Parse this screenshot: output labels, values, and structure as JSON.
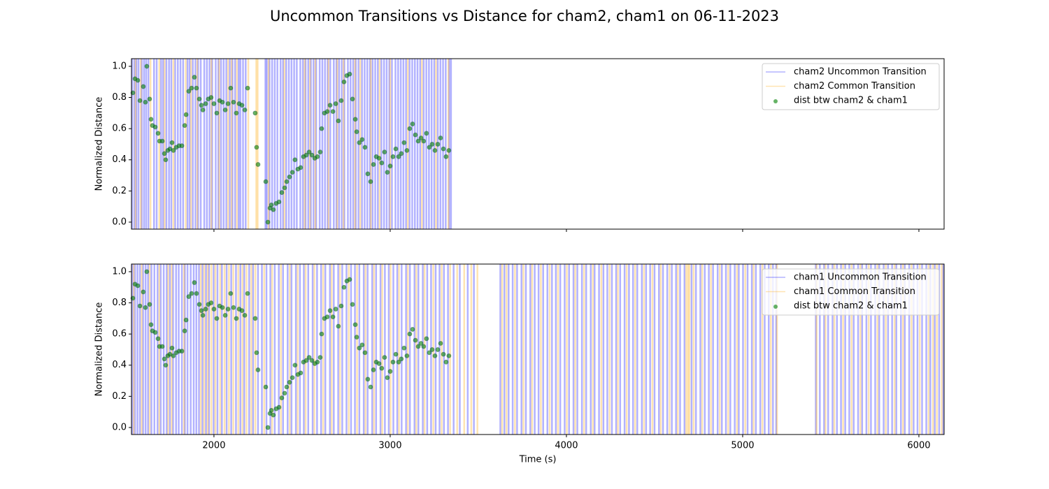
{
  "title": "Uncommon Transitions vs Distance for cham2, cham1 on 06-11-2023",
  "chart_data": [
    {
      "type": "scatter",
      "y_label": "Normalized Distance",
      "show_xtick_labels": false,
      "legend": "upper right",
      "xlim": [
        1532,
        6143
      ],
      "ylim": [
        -0.045,
        1.049
      ],
      "xticks": [
        2000,
        3000,
        4000,
        5000,
        6000
      ],
      "yticks": [
        {
          "value": 0,
          "label": "0.0"
        },
        {
          "value": 0.2,
          "label": "0.2"
        },
        {
          "value": 0.4,
          "label": "0.4"
        },
        {
          "value": 0.6,
          "label": "0.6"
        },
        {
          "value": 0.8,
          "label": "0.8"
        },
        {
          "value": 1.0,
          "label": "1.0"
        }
      ],
      "series": [
        {
          "name": "cham2 Uncommon Transition",
          "type": "vline",
          "color": "blue",
          "x": [
            1535,
            1548,
            1560,
            1572,
            1590,
            1603,
            1615,
            1628,
            1660,
            1675,
            1700,
            1712,
            1730,
            1745,
            1758,
            1780,
            1795,
            1810,
            1825,
            1850,
            1862,
            1880,
            1895,
            1910,
            1925,
            1945,
            1960,
            1975,
            1990,
            2010,
            2025,
            2040,
            2055,
            2070,
            2090,
            2105,
            2120,
            2140,
            2150,
            2165,
            2180,
            2292,
            2300,
            2315,
            2330,
            2345,
            2360,
            2378,
            2392,
            2410,
            2425,
            2440,
            2455,
            2470,
            2490,
            2505,
            2520,
            2535,
            2550,
            2565,
            2580,
            2600,
            2615,
            2630,
            2645,
            2660,
            2680,
            2695,
            2710,
            2725,
            2740,
            2760,
            2775,
            2790,
            2805,
            2820,
            2840,
            2855,
            2870,
            2885,
            2900,
            2915,
            2930,
            2950,
            2965,
            2980,
            2995,
            3010,
            3030,
            3045,
            3060,
            3075,
            3090,
            3110,
            3125,
            3140,
            3155,
            3170,
            3190,
            3205,
            3220,
            3235,
            3250,
            3270,
            3285,
            3300,
            3315,
            3335,
            3345
          ]
        },
        {
          "name": "cham2 Common Transition",
          "type": "vline",
          "color": "orange",
          "x": [
            1555,
            1585,
            1640,
            1690,
            1720,
            1770,
            1840,
            1870,
            1905,
            1985,
            2030,
            2080,
            2100,
            2130,
            2195,
            2240,
            2248,
            2310,
            2400,
            2515,
            2545,
            2575,
            2650,
            2700,
            2735,
            2800,
            2830,
            2890,
            2940,
            3000,
            3100,
            3180,
            3260,
            3330
          ]
        },
        {
          "name": "dist btw cham2 & cham1",
          "type": "scatter",
          "color": "green",
          "x": [
            1540,
            1552,
            1568,
            1580,
            1599,
            1611,
            1619,
            1635,
            1643,
            1651,
            1667,
            1683,
            1691,
            1707,
            1719,
            1726,
            1738,
            1750,
            1762,
            1770,
            1786,
            1802,
            1818,
            1834,
            1842,
            1857,
            1873,
            1889,
            1901,
            1917,
            1929,
            1937,
            1953,
            1968,
            1984,
            2000,
            2016,
            2032,
            2048,
            2064,
            2080,
            2095,
            2111,
            2127,
            2143,
            2159,
            2175,
            2191,
            2234,
            2242,
            2250,
            2294,
            2306,
            2318,
            2326,
            2337,
            2353,
            2369,
            2385,
            2401,
            2413,
            2429,
            2445,
            2460,
            2476,
            2492,
            2508,
            2524,
            2540,
            2556,
            2572,
            2587,
            2603,
            2611,
            2627,
            2643,
            2659,
            2675,
            2691,
            2706,
            2722,
            2738,
            2754,
            2770,
            2786,
            2802,
            2810,
            2825,
            2841,
            2857,
            2873,
            2889,
            2905,
            2921,
            2937,
            2952,
            2968,
            2984,
            3000,
            3016,
            3032,
            3048,
            3063,
            3079,
            3095,
            3111,
            3127,
            3143,
            3159,
            3175,
            3190,
            3206,
            3222,
            3238,
            3254,
            3270,
            3286,
            3302,
            3317,
            3333
          ],
          "values": [
            0.83,
            0.92,
            0.91,
            0.78,
            0.87,
            0.77,
            1.0,
            0.79,
            0.66,
            0.62,
            0.61,
            0.57,
            0.52,
            0.52,
            0.44,
            0.4,
            0.46,
            0.47,
            0.51,
            0.46,
            0.48,
            0.49,
            0.49,
            0.62,
            0.69,
            0.84,
            0.86,
            0.93,
            0.86,
            0.79,
            0.75,
            0.72,
            0.76,
            0.79,
            0.8,
            0.76,
            0.7,
            0.78,
            0.77,
            0.72,
            0.76,
            0.86,
            0.77,
            0.7,
            0.76,
            0.75,
            0.72,
            0.86,
            0.7,
            0.48,
            0.37,
            0.26,
            0.0,
            0.09,
            0.11,
            0.08,
            0.12,
            0.13,
            0.19,
            0.22,
            0.26,
            0.29,
            0.32,
            0.4,
            0.34,
            0.35,
            0.42,
            0.43,
            0.45,
            0.43,
            0.41,
            0.42,
            0.45,
            0.6,
            0.7,
            0.71,
            0.75,
            0.71,
            0.76,
            0.65,
            0.78,
            0.9,
            0.94,
            0.95,
            0.79,
            0.66,
            0.58,
            0.51,
            0.53,
            0.48,
            0.31,
            0.26,
            0.37,
            0.42,
            0.41,
            0.38,
            0.45,
            0.32,
            0.36,
            0.42,
            0.47,
            0.42,
            0.44,
            0.51,
            0.46,
            0.6,
            0.63,
            0.56,
            0.52,
            0.54,
            0.52,
            0.57,
            0.48,
            0.5,
            0.46,
            0.5,
            0.54,
            0.47,
            0.42,
            0.46
          ]
        }
      ]
    },
    {
      "type": "scatter",
      "y_label": "Normalized Distance",
      "x_label": "Time (s)",
      "show_xtick_labels": true,
      "legend": "upper right",
      "xlim": [
        1532,
        6143
      ],
      "ylim": [
        -0.045,
        1.049
      ],
      "xticks": [
        2000,
        3000,
        4000,
        5000,
        6000
      ],
      "yticks": [
        {
          "value": 0,
          "label": "0.0"
        },
        {
          "value": 0.2,
          "label": "0.2"
        },
        {
          "value": 0.4,
          "label": "0.4"
        },
        {
          "value": 0.6,
          "label": "0.6"
        },
        {
          "value": 0.8,
          "label": "0.8"
        },
        {
          "value": 1.0,
          "label": "1.0"
        }
      ],
      "series": [
        {
          "name": "cham1 Uncommon Transition",
          "type": "vline",
          "color": "blue",
          "x": [
            1538,
            1552,
            1566,
            1580,
            1598,
            1612,
            1626,
            1645,
            1662,
            1680,
            1698,
            1715,
            1732,
            1750,
            1768,
            1785,
            1800,
            1818,
            1835,
            1850,
            1868,
            1885,
            1900,
            1915,
            1935,
            1955,
            1972,
            1998,
            2020,
            2045,
            2072,
            2098,
            2125,
            2150,
            2172,
            2200,
            2222,
            2250,
            2272,
            2298,
            2320,
            2345,
            2368,
            2392,
            2418,
            2440,
            2465,
            2488,
            2510,
            2535,
            2560,
            2585,
            2608,
            2632,
            2658,
            2680,
            2705,
            2728,
            2752,
            2778,
            2800,
            2825,
            2850,
            2872,
            2898,
            2920,
            2945,
            2970,
            2992,
            3018,
            3040,
            3065,
            3090,
            3112,
            3138,
            3160,
            3185,
            3210,
            3232,
            3258,
            3280,
            3305,
            3328,
            3360,
            3395,
            3440,
            3475,
            3625,
            3648,
            3672,
            3695,
            3720,
            3745,
            3770,
            3795,
            3820,
            3842,
            3868,
            3892,
            3918,
            3940,
            3965,
            3990,
            4015,
            4040,
            4062,
            4088,
            4112,
            4138,
            4160,
            4185,
            4210,
            4232,
            4258,
            4282,
            4305,
            4330,
            4355,
            4378,
            4402,
            4428,
            4452,
            4475,
            4500,
            4525,
            4548,
            4572,
            4598,
            4622,
            4645,
            4670,
            4710,
            4735,
            4760,
            4785,
            4808,
            4832,
            4858,
            4882,
            4905,
            4930,
            4955,
            4978,
            5002,
            5028,
            5052,
            5075,
            5100,
            5125,
            5148,
            5172,
            5190,
            5415,
            5438,
            5462,
            5485,
            5510,
            5535,
            5558,
            5582,
            5605,
            5630,
            5655,
            5678,
            5702,
            5728,
            5752,
            5775,
            5800,
            5825,
            5848,
            5872,
            5898,
            5920,
            5945,
            5970,
            5992,
            6018,
            6042,
            6065,
            6090,
            6115,
            6138
          ]
        },
        {
          "name": "cham1 Common Transition",
          "type": "vline",
          "color": "orange",
          "x": [
            1545,
            1590,
            1635,
            1690,
            1740,
            1760,
            1830,
            1925,
            1945,
            1965,
            1985,
            2008,
            2035,
            2060,
            2085,
            2110,
            2138,
            2162,
            2185,
            2212,
            2235,
            2285,
            2330,
            2380,
            2430,
            2475,
            2520,
            2570,
            2620,
            2668,
            2715,
            2765,
            2812,
            2860,
            2908,
            2955,
            3002,
            3050,
            3100,
            3148,
            3195,
            3245,
            3292,
            3340,
            3380,
            3420,
            3460,
            3495,
            3635,
            3660,
            3708,
            3756,
            3805,
            3855,
            3905,
            3952,
            4002,
            4050,
            4100,
            4150,
            4198,
            4245,
            4292,
            4342,
            4390,
            4440,
            4488,
            4535,
            4585,
            4632,
            4680,
            4690,
            4698,
            4722,
            4770,
            4820,
            4870,
            4918,
            4968,
            5015,
            5062,
            5112,
            5160,
            5195,
            5420,
            5470,
            5520,
            5570,
            5618,
            5668,
            5715,
            5765,
            5812,
            5862,
            5910,
            5958,
            6005,
            6055,
            6080,
            6102,
            6130
          ]
        },
        {
          "name": "dist btw cham2 & cham1",
          "type": "scatter",
          "color": "green",
          "x": [
            1540,
            1552,
            1568,
            1580,
            1599,
            1611,
            1619,
            1635,
            1643,
            1651,
            1667,
            1683,
            1691,
            1707,
            1719,
            1726,
            1738,
            1750,
            1762,
            1770,
            1786,
            1802,
            1818,
            1834,
            1842,
            1857,
            1873,
            1889,
            1901,
            1917,
            1929,
            1937,
            1953,
            1968,
            1984,
            2000,
            2016,
            2032,
            2048,
            2064,
            2080,
            2095,
            2111,
            2127,
            2143,
            2159,
            2175,
            2191,
            2234,
            2242,
            2250,
            2294,
            2306,
            2318,
            2326,
            2337,
            2353,
            2369,
            2385,
            2401,
            2413,
            2429,
            2445,
            2460,
            2476,
            2492,
            2508,
            2524,
            2540,
            2556,
            2572,
            2587,
            2603,
            2611,
            2627,
            2643,
            2659,
            2675,
            2691,
            2706,
            2722,
            2738,
            2754,
            2770,
            2786,
            2802,
            2810,
            2825,
            2841,
            2857,
            2873,
            2889,
            2905,
            2921,
            2937,
            2952,
            2968,
            2984,
            3000,
            3016,
            3032,
            3048,
            3063,
            3079,
            3095,
            3111,
            3127,
            3143,
            3159,
            3175,
            3190,
            3206,
            3222,
            3238,
            3254,
            3270,
            3286,
            3302,
            3317,
            3333
          ],
          "values": [
            0.83,
            0.92,
            0.91,
            0.78,
            0.87,
            0.77,
            1.0,
            0.79,
            0.66,
            0.62,
            0.61,
            0.57,
            0.52,
            0.52,
            0.44,
            0.4,
            0.46,
            0.47,
            0.51,
            0.46,
            0.48,
            0.49,
            0.49,
            0.62,
            0.69,
            0.84,
            0.86,
            0.93,
            0.86,
            0.79,
            0.75,
            0.72,
            0.76,
            0.79,
            0.8,
            0.76,
            0.7,
            0.78,
            0.77,
            0.72,
            0.76,
            0.86,
            0.77,
            0.7,
            0.76,
            0.75,
            0.72,
            0.86,
            0.7,
            0.48,
            0.37,
            0.26,
            0.0,
            0.09,
            0.11,
            0.08,
            0.12,
            0.13,
            0.19,
            0.22,
            0.26,
            0.29,
            0.32,
            0.4,
            0.34,
            0.35,
            0.42,
            0.43,
            0.45,
            0.43,
            0.41,
            0.42,
            0.45,
            0.6,
            0.7,
            0.71,
            0.75,
            0.71,
            0.76,
            0.65,
            0.78,
            0.9,
            0.94,
            0.95,
            0.79,
            0.66,
            0.58,
            0.51,
            0.53,
            0.48,
            0.31,
            0.26,
            0.37,
            0.42,
            0.41,
            0.38,
            0.45,
            0.32,
            0.36,
            0.42,
            0.47,
            0.42,
            0.44,
            0.51,
            0.46,
            0.6,
            0.63,
            0.56,
            0.52,
            0.54,
            0.52,
            0.57,
            0.48,
            0.5,
            0.46,
            0.5,
            0.54,
            0.47,
            0.42,
            0.46
          ]
        }
      ]
    }
  ]
}
